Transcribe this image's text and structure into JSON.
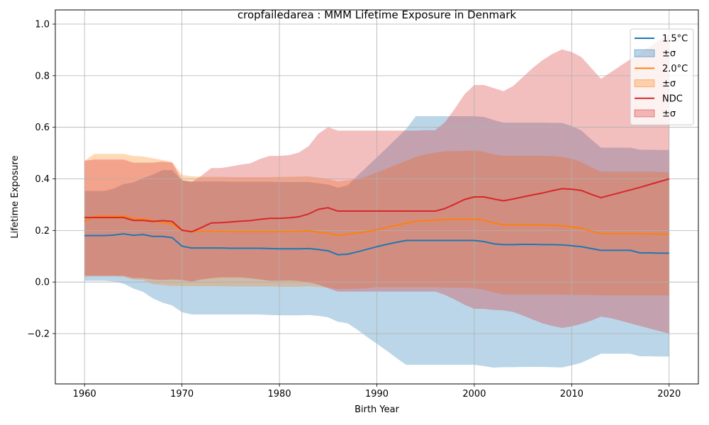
{
  "chart_data": {
    "type": "area",
    "title": "cropfailedarea : MMM Lifetime Exposure in Denmark",
    "xlabel": "Birth Year",
    "ylabel": "Lifetime Exposure",
    "xlim": [
      1957,
      2023
    ],
    "ylim": [
      -0.395,
      1.055
    ],
    "xticks": [
      1960,
      1970,
      1980,
      1990,
      2000,
      2010,
      2020
    ],
    "xtick_labels": [
      "1960",
      "1970",
      "1980",
      "1990",
      "2000",
      "2010",
      "2020"
    ],
    "yticks": [
      -0.2,
      0.0,
      0.2,
      0.4,
      0.6,
      0.8,
      1.0
    ],
    "ytick_labels": [
      "−0.2",
      "0.0",
      "0.2",
      "0.4",
      "0.6",
      "0.8",
      "1.0"
    ],
    "grid": true,
    "legend_position": "top-right",
    "x": [
      1960,
      1961,
      1962,
      1963,
      1964,
      1965,
      1966,
      1967,
      1968,
      1969,
      1970,
      1971,
      1972,
      1973,
      1974,
      1975,
      1976,
      1977,
      1978,
      1979,
      1980,
      1981,
      1982,
      1983,
      1984,
      1985,
      1986,
      1987,
      1988,
      1989,
      1990,
      1991,
      1992,
      1993,
      1994,
      1995,
      1996,
      1997,
      1998,
      1999,
      2000,
      2001,
      2002,
      2003,
      2004,
      2005,
      2006,
      2007,
      2008,
      2009,
      2010,
      2011,
      2012,
      2013,
      2014,
      2015,
      2016,
      2017,
      2018,
      2019,
      2020
    ],
    "series": [
      {
        "name": "1.5°C",
        "band_name": "±σ",
        "color": "#1f77b4",
        "band_color": "#1f77b4",
        "band_alpha": 0.3,
        "mean": [
          0.18,
          0.18,
          0.18,
          0.182,
          0.187,
          0.181,
          0.184,
          0.177,
          0.177,
          0.172,
          0.139,
          0.132,
          0.132,
          0.132,
          0.132,
          0.131,
          0.131,
          0.131,
          0.131,
          0.13,
          0.129,
          0.129,
          0.129,
          0.13,
          0.126,
          0.121,
          0.106,
          0.108,
          0.117,
          0.127,
          0.137,
          0.146,
          0.154,
          0.161,
          0.161,
          0.161,
          0.161,
          0.161,
          0.161,
          0.161,
          0.161,
          0.157,
          0.148,
          0.145,
          0.145,
          0.146,
          0.146,
          0.145,
          0.145,
          0.144,
          0.141,
          0.137,
          0.13,
          0.123,
          0.123,
          0.123,
          0.123,
          0.113,
          0.113,
          0.112,
          0.112
        ],
        "upper": [
          0.353,
          0.353,
          0.353,
          0.362,
          0.38,
          0.386,
          0.403,
          0.416,
          0.434,
          0.434,
          0.394,
          0.39,
          0.39,
          0.39,
          0.39,
          0.389,
          0.389,
          0.389,
          0.389,
          0.389,
          0.388,
          0.388,
          0.388,
          0.388,
          0.383,
          0.378,
          0.366,
          0.375,
          0.412,
          0.447,
          0.483,
          0.519,
          0.556,
          0.593,
          0.643,
          0.643,
          0.643,
          0.643,
          0.643,
          0.643,
          0.643,
          0.64,
          0.628,
          0.618,
          0.618,
          0.618,
          0.618,
          0.618,
          0.617,
          0.617,
          0.605,
          0.587,
          0.553,
          0.521,
          0.521,
          0.521,
          0.521,
          0.513,
          0.513,
          0.512,
          0.512
        ],
        "lower": [
          0.005,
          0.005,
          0.005,
          0.002,
          -0.006,
          -0.025,
          -0.038,
          -0.063,
          -0.08,
          -0.091,
          -0.117,
          -0.126,
          -0.126,
          -0.126,
          -0.126,
          -0.126,
          -0.126,
          -0.126,
          -0.126,
          -0.128,
          -0.129,
          -0.129,
          -0.129,
          -0.128,
          -0.131,
          -0.137,
          -0.154,
          -0.16,
          -0.185,
          -0.213,
          -0.239,
          -0.266,
          -0.294,
          -0.321,
          -0.321,
          -0.321,
          -0.321,
          -0.321,
          -0.321,
          -0.321,
          -0.321,
          -0.326,
          -0.332,
          -0.33,
          -0.33,
          -0.329,
          -0.329,
          -0.329,
          -0.33,
          -0.331,
          -0.323,
          -0.313,
          -0.295,
          -0.278,
          -0.278,
          -0.278,
          -0.278,
          -0.288,
          -0.288,
          -0.289,
          -0.289
        ]
      },
      {
        "name": "2.0°C",
        "band_name": "±σ",
        "color": "#ff7f0e",
        "band_color": "#ff7f0e",
        "band_alpha": 0.3,
        "mean": [
          0.235,
          0.255,
          0.255,
          0.255,
          0.255,
          0.247,
          0.245,
          0.238,
          0.23,
          0.225,
          0.2,
          0.197,
          0.197,
          0.197,
          0.197,
          0.196,
          0.196,
          0.196,
          0.196,
          0.196,
          0.196,
          0.196,
          0.197,
          0.198,
          0.193,
          0.19,
          0.181,
          0.186,
          0.19,
          0.195,
          0.203,
          0.211,
          0.22,
          0.228,
          0.236,
          0.238,
          0.24,
          0.242,
          0.243,
          0.243,
          0.243,
          0.24,
          0.229,
          0.222,
          0.222,
          0.222,
          0.221,
          0.221,
          0.22,
          0.218,
          0.214,
          0.208,
          0.197,
          0.188,
          0.188,
          0.188,
          0.188,
          0.187,
          0.187,
          0.186,
          0.185
        ],
        "upper": [
          0.47,
          0.497,
          0.497,
          0.497,
          0.497,
          0.489,
          0.487,
          0.48,
          0.473,
          0.465,
          0.415,
          0.41,
          0.408,
          0.408,
          0.408,
          0.407,
          0.407,
          0.407,
          0.407,
          0.407,
          0.408,
          0.408,
          0.409,
          0.41,
          0.405,
          0.4,
          0.39,
          0.395,
          0.4,
          0.41,
          0.425,
          0.44,
          0.455,
          0.47,
          0.485,
          0.495,
          0.502,
          0.507,
          0.508,
          0.508,
          0.51,
          0.505,
          0.495,
          0.49,
          0.49,
          0.49,
          0.49,
          0.49,
          0.488,
          0.485,
          0.478,
          0.465,
          0.445,
          0.428,
          0.428,
          0.428,
          0.428,
          0.428,
          0.428,
          0.427,
          0.425
        ],
        "lower": [
          0.02,
          0.022,
          0.022,
          0.022,
          0.02,
          0.01,
          0.008,
          -0.008,
          -0.012,
          -0.015,
          -0.015,
          -0.016,
          -0.016,
          -0.016,
          -0.016,
          -0.017,
          -0.017,
          -0.017,
          -0.017,
          -0.017,
          -0.018,
          -0.018,
          -0.018,
          -0.016,
          -0.019,
          -0.021,
          -0.028,
          -0.027,
          -0.026,
          -0.024,
          -0.02,
          -0.02,
          -0.02,
          -0.02,
          -0.02,
          -0.02,
          -0.02,
          -0.022,
          -0.022,
          -0.022,
          -0.025,
          -0.03,
          -0.04,
          -0.048,
          -0.048,
          -0.048,
          -0.048,
          -0.048,
          -0.048,
          -0.049,
          -0.05,
          -0.05,
          -0.05,
          -0.052,
          -0.052,
          -0.052,
          -0.052,
          -0.052,
          -0.052,
          -0.052,
          -0.052
        ]
      },
      {
        "name": "NDC",
        "band_name": "±σ",
        "color": "#d62728",
        "band_color": "#d62728",
        "band_alpha": 0.3,
        "mean": [
          0.25,
          0.25,
          0.25,
          0.25,
          0.25,
          0.239,
          0.239,
          0.235,
          0.238,
          0.235,
          0.201,
          0.195,
          0.211,
          0.229,
          0.23,
          0.233,
          0.236,
          0.238,
          0.243,
          0.247,
          0.247,
          0.249,
          0.253,
          0.264,
          0.282,
          0.288,
          0.275,
          0.275,
          0.275,
          0.275,
          0.275,
          0.275,
          0.275,
          0.275,
          0.275,
          0.275,
          0.275,
          0.285,
          0.302,
          0.32,
          0.33,
          0.33,
          0.322,
          0.315,
          0.322,
          0.33,
          0.338,
          0.345,
          0.354,
          0.362,
          0.36,
          0.355,
          0.34,
          0.327,
          0.337,
          0.347,
          0.357,
          0.367,
          0.378,
          0.389,
          0.4
        ],
        "upper": [
          0.47,
          0.475,
          0.475,
          0.475,
          0.475,
          0.463,
          0.463,
          0.463,
          0.467,
          0.463,
          0.395,
          0.388,
          0.412,
          0.442,
          0.442,
          0.448,
          0.455,
          0.46,
          0.477,
          0.489,
          0.489,
          0.492,
          0.502,
          0.527,
          0.575,
          0.6,
          0.587,
          0.587,
          0.587,
          0.587,
          0.587,
          0.587,
          0.587,
          0.587,
          0.587,
          0.589,
          0.589,
          0.62,
          0.672,
          0.728,
          0.764,
          0.764,
          0.752,
          0.74,
          0.76,
          0.795,
          0.83,
          0.86,
          0.884,
          0.902,
          0.892,
          0.872,
          0.83,
          0.788,
          0.813,
          0.838,
          0.863,
          0.888,
          0.913,
          0.938,
          0.962
        ],
        "lower": [
          0.025,
          0.024,
          0.024,
          0.024,
          0.024,
          0.015,
          0.015,
          0.01,
          0.008,
          0.01,
          0.008,
          0.002,
          0.01,
          0.015,
          0.018,
          0.018,
          0.018,
          0.015,
          0.01,
          0.005,
          0.005,
          0.006,
          0.004,
          -0.002,
          -0.01,
          -0.024,
          -0.037,
          -0.037,
          -0.037,
          -0.037,
          -0.037,
          -0.037,
          -0.037,
          -0.037,
          -0.037,
          -0.037,
          -0.037,
          -0.05,
          -0.068,
          -0.088,
          -0.104,
          -0.104,
          -0.108,
          -0.11,
          -0.116,
          -0.13,
          -0.145,
          -0.16,
          -0.17,
          -0.178,
          -0.172,
          -0.162,
          -0.15,
          -0.134,
          -0.14,
          -0.15,
          -0.16,
          -0.17,
          -0.18,
          -0.19,
          -0.2
        ]
      }
    ]
  }
}
